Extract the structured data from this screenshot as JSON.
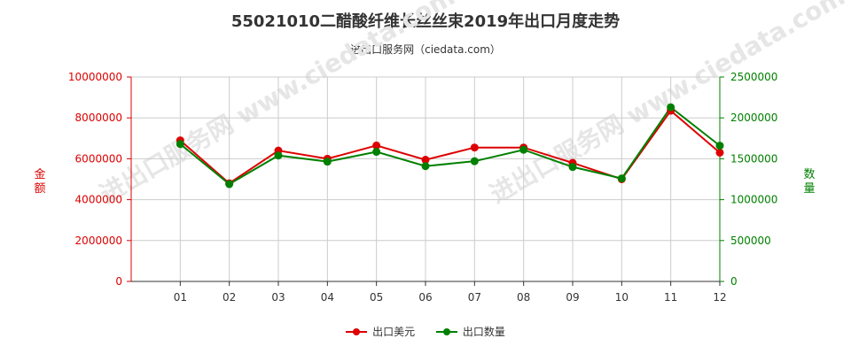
{
  "title": "55021010二醋酸纤维长丝丝束2019年出口月度走势",
  "subtitle": "进出口服务网（ciedata.com）",
  "watermark": "进出口服务网 www.ciedata.com",
  "colors": {
    "left_series": "#dd0000",
    "right_series": "#008000",
    "grid": "#cccccc",
    "axis": "#333333"
  },
  "chart_data": {
    "type": "line",
    "categories": [
      "01",
      "02",
      "03",
      "04",
      "05",
      "06",
      "07",
      "08",
      "09",
      "10",
      "11",
      "12"
    ],
    "y_left": {
      "label": "金额",
      "min": 0,
      "max": 10000000,
      "ticks": [
        "0",
        "2000000",
        "4000000",
        "6000000",
        "8000000",
        "10000000"
      ]
    },
    "y_right": {
      "label": "数量",
      "min": 0,
      "max": 2500000,
      "ticks": [
        "0",
        "500000",
        "1000000",
        "1500000",
        "2000000",
        "2500000"
      ]
    },
    "series": [
      {
        "name": "出口美元",
        "axis": "left",
        "color": "#dd0000",
        "values": [
          6900000,
          4800000,
          6400000,
          6000000,
          6650000,
          5950000,
          6550000,
          6550000,
          5800000,
          5000000,
          8350000,
          6300000
        ]
      },
      {
        "name": "出口数量",
        "axis": "right",
        "color": "#008000",
        "values": [
          1680000,
          1190000,
          1540000,
          1465000,
          1585000,
          1410000,
          1470000,
          1610000,
          1400000,
          1260000,
          2130000,
          1660000
        ]
      }
    ],
    "grid": true,
    "legend_position": "bottom-center"
  }
}
